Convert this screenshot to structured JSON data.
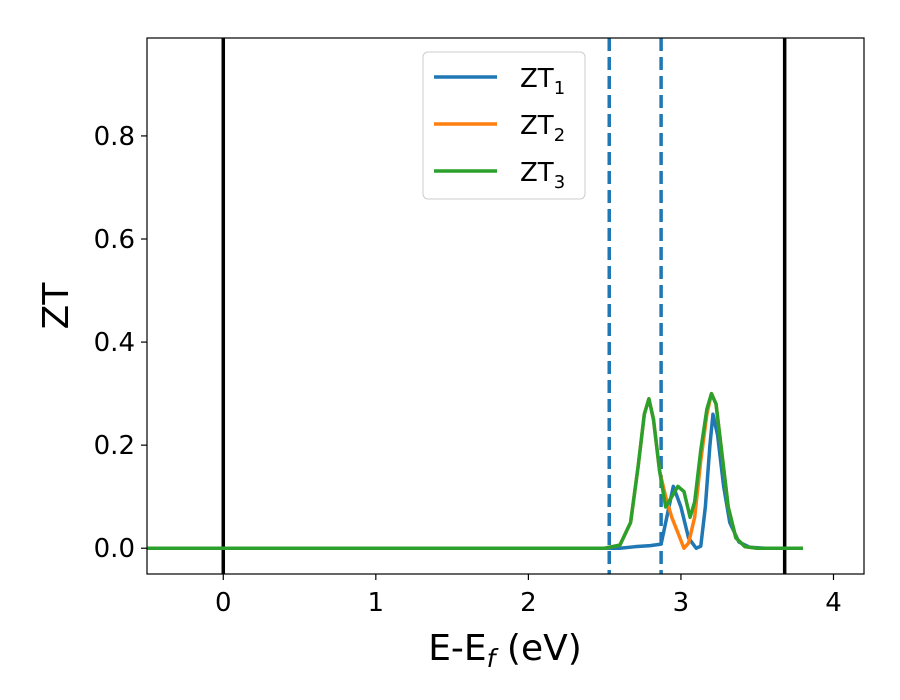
{
  "chart_data": {
    "type": "line",
    "xlabel": "E-E",
    "xlabel_sub": "f",
    "xlabel_unit": " (eV)",
    "ylabel": "ZT",
    "xlim": [
      -0.5,
      4.2
    ],
    "ylim": [
      -0.05,
      0.99
    ],
    "xticks": [
      0,
      1,
      2,
      3,
      4
    ],
    "xtick_labels": [
      "0",
      "1",
      "2",
      "3",
      "4"
    ],
    "yticks": [
      0.0,
      0.2,
      0.4,
      0.6,
      0.8
    ],
    "ytick_labels": [
      "0.0",
      "0.2",
      "0.4",
      "0.6",
      "0.8"
    ],
    "grid": false,
    "legend_position": "upper-center",
    "vlines_solid": [
      0.0,
      3.68
    ],
    "vlines_dashed": [
      2.53,
      2.87
    ],
    "series": [
      {
        "name": "ZT",
        "name_sub": "1",
        "color": "#1f77b4",
        "points": [
          [
            -0.5,
            0
          ],
          [
            2.5,
            0
          ],
          [
            2.6,
            0.0
          ],
          [
            2.7,
            0.003
          ],
          [
            2.8,
            0.005
          ],
          [
            2.87,
            0.008
          ],
          [
            2.9,
            0.05
          ],
          [
            2.95,
            0.12
          ],
          [
            3.0,
            0.08
          ],
          [
            3.05,
            0.02
          ],
          [
            3.1,
            0.0
          ],
          [
            3.13,
            0.004
          ],
          [
            3.16,
            0.08
          ],
          [
            3.19,
            0.2
          ],
          [
            3.21,
            0.26
          ],
          [
            3.24,
            0.22
          ],
          [
            3.28,
            0.12
          ],
          [
            3.32,
            0.05
          ],
          [
            3.38,
            0.012
          ],
          [
            3.45,
            0.002
          ],
          [
            3.55,
            0
          ],
          [
            3.8,
            0
          ]
        ]
      },
      {
        "name": "ZT",
        "name_sub": "2",
        "color": "#ff7f0e",
        "points": [
          [
            -0.5,
            0
          ],
          [
            2.5,
            0
          ],
          [
            2.6,
            0.006
          ],
          [
            2.67,
            0.05
          ],
          [
            2.72,
            0.16
          ],
          [
            2.76,
            0.26
          ],
          [
            2.79,
            0.29
          ],
          [
            2.82,
            0.25
          ],
          [
            2.86,
            0.15
          ],
          [
            2.9,
            0.1
          ],
          [
            2.94,
            0.06
          ],
          [
            2.98,
            0.03
          ],
          [
            3.02,
            0.0
          ],
          [
            3.05,
            0.01
          ],
          [
            3.09,
            0.06
          ],
          [
            3.13,
            0.17
          ],
          [
            3.17,
            0.26
          ],
          [
            3.2,
            0.3
          ],
          [
            3.23,
            0.28
          ],
          [
            3.27,
            0.18
          ],
          [
            3.31,
            0.08
          ],
          [
            3.36,
            0.02
          ],
          [
            3.42,
            0.003
          ],
          [
            3.5,
            0
          ],
          [
            3.8,
            0
          ]
        ]
      },
      {
        "name": "ZT",
        "name_sub": "3",
        "color": "#2ca02c",
        "points": [
          [
            -0.5,
            0
          ],
          [
            2.5,
            0
          ],
          [
            2.6,
            0.006
          ],
          [
            2.67,
            0.05
          ],
          [
            2.72,
            0.16
          ],
          [
            2.76,
            0.26
          ],
          [
            2.79,
            0.29
          ],
          [
            2.82,
            0.25
          ],
          [
            2.86,
            0.15
          ],
          [
            2.9,
            0.08
          ],
          [
            2.94,
            0.1
          ],
          [
            2.98,
            0.12
          ],
          [
            3.02,
            0.11
          ],
          [
            3.06,
            0.06
          ],
          [
            3.09,
            0.09
          ],
          [
            3.13,
            0.19
          ],
          [
            3.17,
            0.27
          ],
          [
            3.2,
            0.3
          ],
          [
            3.23,
            0.28
          ],
          [
            3.27,
            0.18
          ],
          [
            3.31,
            0.08
          ],
          [
            3.36,
            0.02
          ],
          [
            3.42,
            0.003
          ],
          [
            3.5,
            0
          ],
          [
            3.8,
            0
          ]
        ]
      }
    ]
  }
}
